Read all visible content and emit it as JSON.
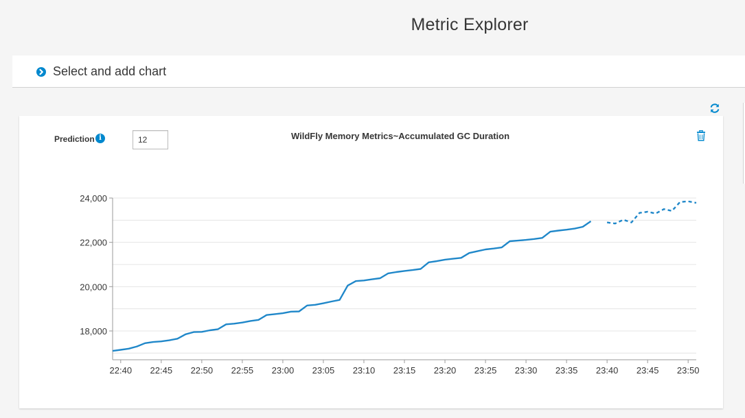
{
  "page": {
    "title": "Metric Explorer"
  },
  "accordion": {
    "label": "Select and add chart",
    "icon": "chevron-right-circle-icon"
  },
  "toolbar": {
    "refresh_icon": "refresh-icon"
  },
  "chart_card": {
    "prediction_label": "Prediction",
    "prediction_value": "12",
    "info_icon": "info-icon",
    "delete_icon": "trash-icon"
  },
  "colors": {
    "accent": "#0088ce",
    "line": "#1f87c9",
    "grid": "#e4e4e4"
  },
  "chart_data": {
    "type": "line",
    "title": "WildFly Memory Metrics~Accumulated GC Duration",
    "xlabel": "",
    "ylabel": "",
    "x_tick_labels": [
      "22:40",
      "22:45",
      "22:50",
      "22:55",
      "23:00",
      "23:05",
      "23:10",
      "23:15",
      "23:20",
      "23:25",
      "23:30",
      "23:35",
      "23:40",
      "23:45",
      "23:50"
    ],
    "y_tick_labels": [
      "18,000",
      "20,000",
      "22,000",
      "24,000"
    ],
    "ylim": [
      16700,
      24000
    ],
    "xlim": [
      "22:39",
      "23:51"
    ],
    "grid": true,
    "series": [
      {
        "style": "solid",
        "points": [
          [
            "22:39",
            17100
          ],
          [
            "22:40",
            17150
          ],
          [
            "22:41",
            17200
          ],
          [
            "22:42",
            17300
          ],
          [
            "22:43",
            17450
          ],
          [
            "22:44",
            17500
          ],
          [
            "22:45",
            17530
          ],
          [
            "22:46",
            17580
          ],
          [
            "22:47",
            17650
          ],
          [
            "22:48",
            17850
          ],
          [
            "22:49",
            17950
          ],
          [
            "22:50",
            17960
          ],
          [
            "22:51",
            18030
          ],
          [
            "22:52",
            18080
          ],
          [
            "22:53",
            18300
          ],
          [
            "22:54",
            18330
          ],
          [
            "22:55",
            18380
          ],
          [
            "22:56",
            18450
          ],
          [
            "22:57",
            18500
          ],
          [
            "22:58",
            18720
          ],
          [
            "22:59",
            18760
          ],
          [
            "23:00",
            18800
          ],
          [
            "23:01",
            18870
          ],
          [
            "23:02",
            18880
          ],
          [
            "23:03",
            19150
          ],
          [
            "23:04",
            19180
          ],
          [
            "23:05",
            19250
          ],
          [
            "23:06",
            19330
          ],
          [
            "23:07",
            19400
          ],
          [
            "23:08",
            20050
          ],
          [
            "23:09",
            20250
          ],
          [
            "23:10",
            20280
          ],
          [
            "23:11",
            20330
          ],
          [
            "23:12",
            20380
          ],
          [
            "23:13",
            20600
          ],
          [
            "23:14",
            20660
          ],
          [
            "23:15",
            20710
          ],
          [
            "23:16",
            20750
          ],
          [
            "23:17",
            20800
          ],
          [
            "23:18",
            21100
          ],
          [
            "23:19",
            21150
          ],
          [
            "23:20",
            21220
          ],
          [
            "23:21",
            21260
          ],
          [
            "23:22",
            21300
          ],
          [
            "23:23",
            21520
          ],
          [
            "23:24",
            21600
          ],
          [
            "23:25",
            21680
          ],
          [
            "23:26",
            21720
          ],
          [
            "23:27",
            21770
          ],
          [
            "23:28",
            22050
          ],
          [
            "23:29",
            22080
          ],
          [
            "23:30",
            22110
          ],
          [
            "23:31",
            22150
          ],
          [
            "23:32",
            22200
          ],
          [
            "23:33",
            22480
          ],
          [
            "23:34",
            22530
          ],
          [
            "23:35",
            22570
          ],
          [
            "23:36",
            22620
          ],
          [
            "23:37",
            22700
          ],
          [
            "23:38",
            22950
          ]
        ]
      },
      {
        "style": "dashed",
        "points": [
          [
            "23:40",
            22900
          ],
          [
            "23:41",
            22850
          ],
          [
            "23:42",
            23020
          ],
          [
            "23:43",
            22900
          ],
          [
            "23:44",
            23330
          ],
          [
            "23:45",
            23380
          ],
          [
            "23:46",
            23300
          ],
          [
            "23:47",
            23500
          ],
          [
            "23:48",
            23420
          ],
          [
            "23:49",
            23820
          ],
          [
            "23:50",
            23850
          ],
          [
            "23:51",
            23780
          ]
        ]
      }
    ]
  }
}
